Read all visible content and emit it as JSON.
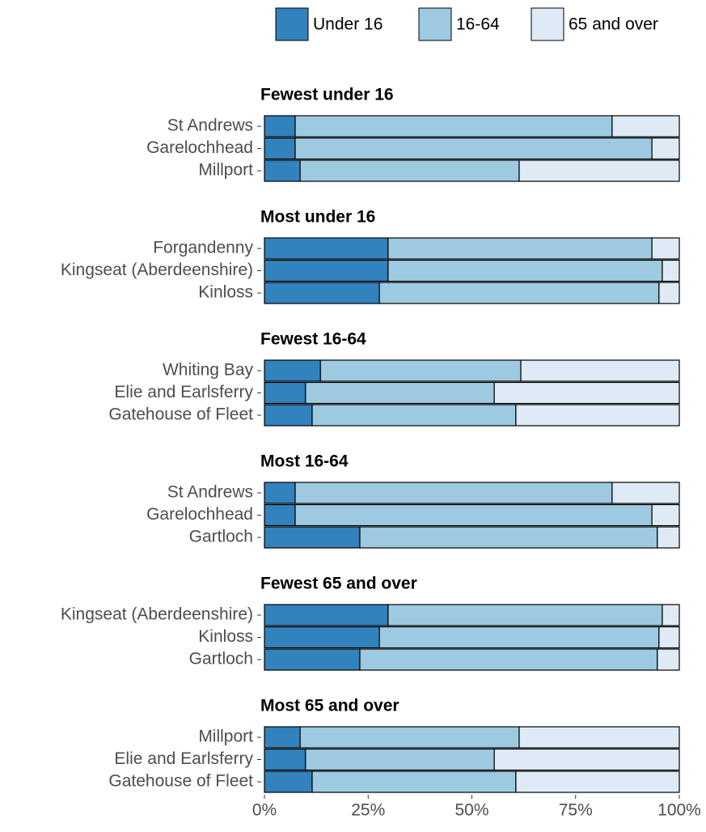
{
  "chart_data": [
    {
      "type": "bar",
      "title": "Fewest under 16",
      "categories": [
        "St Andrews",
        "Garelochhead",
        "Millport"
      ],
      "series": [
        {
          "name": "Under 16",
          "color": "#3182bd",
          "values": [
            7.4,
            7.4,
            8.6
          ]
        },
        {
          "name": "16-64",
          "color": "#9ecae1",
          "values": [
            76.4,
            86.0,
            52.8
          ]
        },
        {
          "name": "65 and over",
          "color": "#deebf7",
          "values": [
            16.2,
            6.6,
            38.6
          ]
        }
      ],
      "xlim": [
        0,
        100
      ]
    },
    {
      "type": "bar",
      "title": "Most under 16",
      "categories": [
        "Forgandenny",
        "Kingseat (Aberdeenshire)",
        "Kinloss"
      ],
      "series": [
        {
          "name": "Under 16",
          "color": "#3182bd",
          "values": [
            29.8,
            29.8,
            27.7
          ]
        },
        {
          "name": "16-64",
          "color": "#9ecae1",
          "values": [
            63.6,
            66.1,
            67.4
          ]
        },
        {
          "name": "65 and over",
          "color": "#deebf7",
          "values": [
            6.6,
            4.1,
            4.9
          ]
        }
      ],
      "xlim": [
        0,
        100
      ]
    },
    {
      "type": "bar",
      "title": "Fewest 16-64",
      "categories": [
        "Whiting Bay",
        "Elie and Earlsferry",
        "Gatehouse of Fleet"
      ],
      "series": [
        {
          "name": "Under 16",
          "color": "#3182bd",
          "values": [
            13.5,
            9.9,
            11.5
          ]
        },
        {
          "name": "16-64",
          "color": "#9ecae1",
          "values": [
            48.3,
            45.5,
            49.1
          ]
        },
        {
          "name": "65 and over",
          "color": "#deebf7",
          "values": [
            38.2,
            44.6,
            39.4
          ]
        }
      ],
      "xlim": [
        0,
        100
      ]
    },
    {
      "type": "bar",
      "title": "Most 16-64",
      "categories": [
        "St Andrews",
        "Garelochhead",
        "Gartloch"
      ],
      "series": [
        {
          "name": "Under 16",
          "color": "#3182bd",
          "values": [
            7.4,
            7.4,
            23.0
          ]
        },
        {
          "name": "16-64",
          "color": "#9ecae1",
          "values": [
            76.4,
            86.0,
            71.7
          ]
        },
        {
          "name": "65 and over",
          "color": "#deebf7",
          "values": [
            16.2,
            6.6,
            5.3
          ]
        }
      ],
      "xlim": [
        0,
        100
      ]
    },
    {
      "type": "bar",
      "title": "Fewest 65 and over",
      "categories": [
        "Kingseat (Aberdeenshire)",
        "Kinloss",
        "Gartloch"
      ],
      "series": [
        {
          "name": "Under 16",
          "color": "#3182bd",
          "values": [
            29.8,
            27.7,
            23.0
          ]
        },
        {
          "name": "16-64",
          "color": "#9ecae1",
          "values": [
            66.1,
            67.4,
            71.7
          ]
        },
        {
          "name": "65 and over",
          "color": "#deebf7",
          "values": [
            4.1,
            4.9,
            5.3
          ]
        }
      ],
      "xlim": [
        0,
        100
      ]
    },
    {
      "type": "bar",
      "title": "Most 65 and over",
      "categories": [
        "Millport",
        "Elie and Earlsferry",
        "Gatehouse of Fleet"
      ],
      "series": [
        {
          "name": "Under 16",
          "color": "#3182bd",
          "values": [
            8.6,
            9.9,
            11.5
          ]
        },
        {
          "name": "16-64",
          "color": "#9ecae1",
          "values": [
            52.8,
            45.5,
            49.1
          ]
        },
        {
          "name": "65 and over",
          "color": "#deebf7",
          "values": [
            38.6,
            44.6,
            39.4
          ]
        }
      ],
      "xlim": [
        0,
        100
      ],
      "xticks": [
        {
          "value": 0,
          "label": "0%"
        },
        {
          "value": 25,
          "label": "25%"
        },
        {
          "value": 50,
          "label": "50%"
        },
        {
          "value": 75,
          "label": "75%"
        },
        {
          "value": 100,
          "label": "100%"
        }
      ]
    }
  ]
}
